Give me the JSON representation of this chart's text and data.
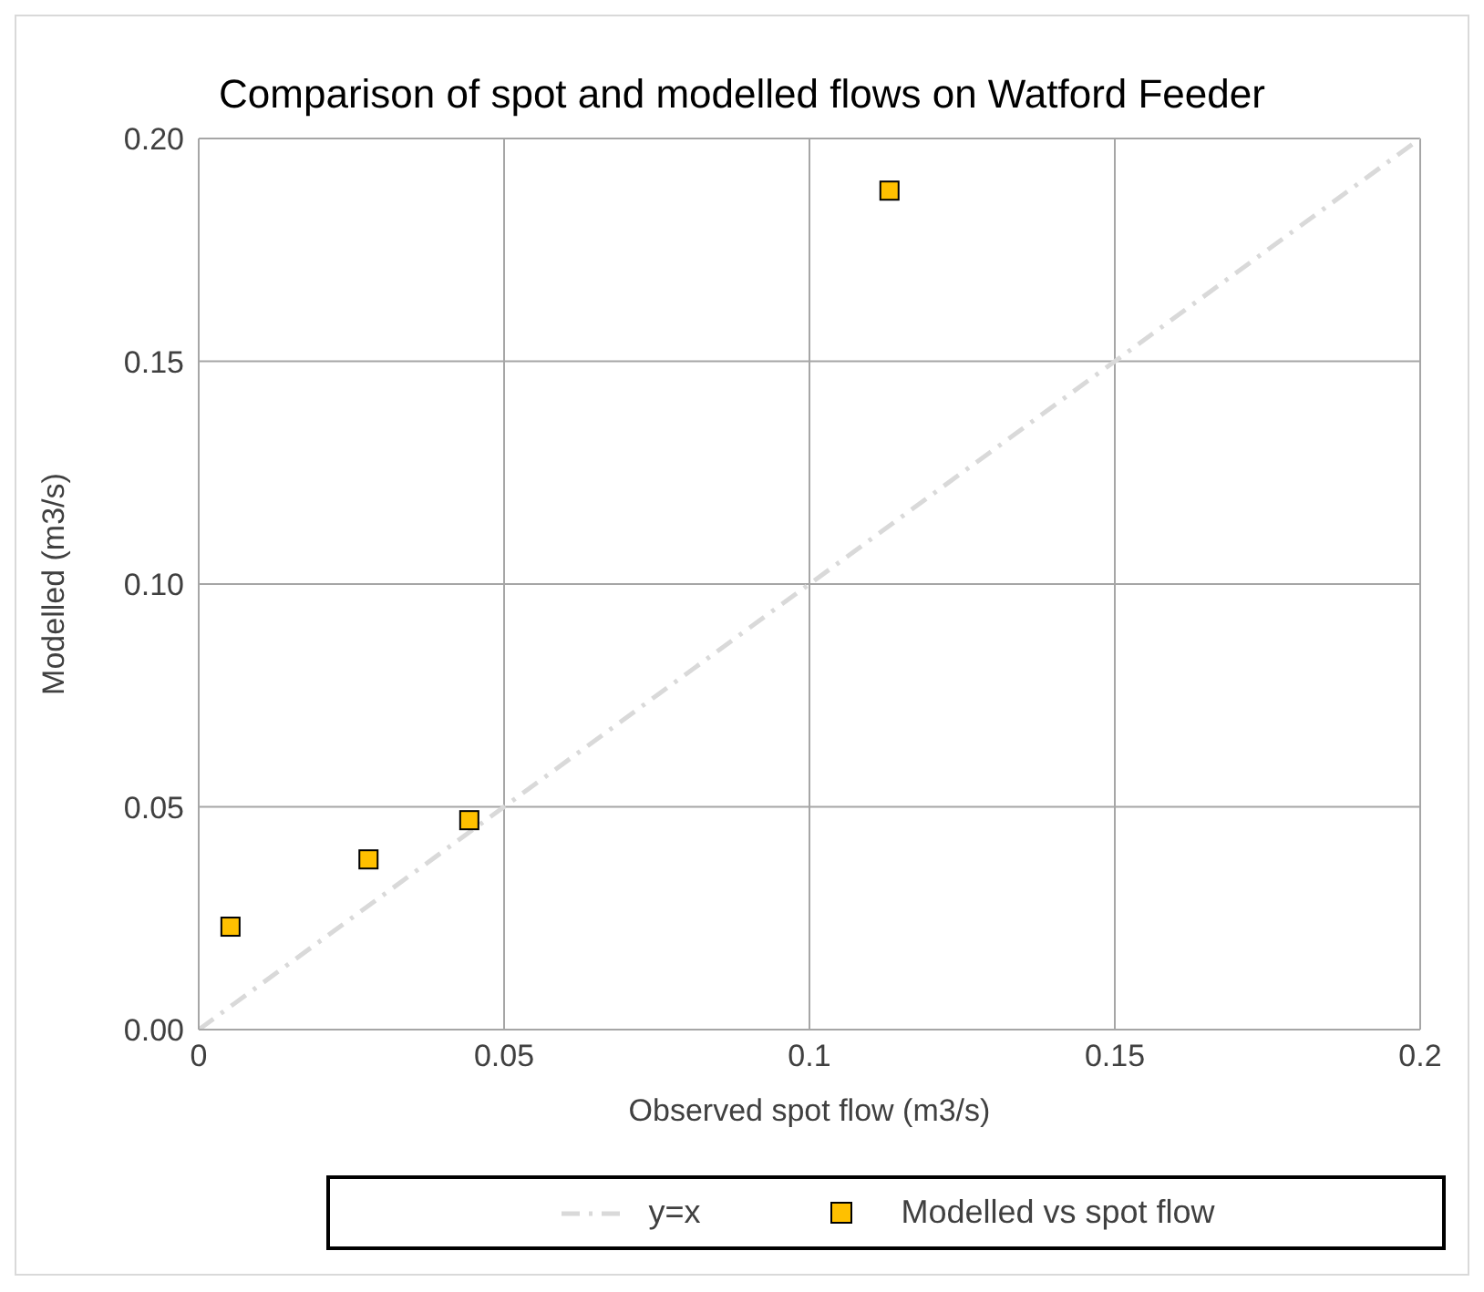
{
  "chart_data": {
    "type": "scatter",
    "title": "Comparison of spot and modelled flows on Watford Feeder",
    "xlabel": "Observed spot flow (m3/s)",
    "ylabel": "Modelled (m3/s)",
    "xlim": [
      0,
      0.2
    ],
    "ylim": [
      0,
      0.2
    ],
    "xticks": [
      0,
      0.05,
      0.1,
      0.15,
      0.2
    ],
    "yticks": [
      {
        "value": 0,
        "label": "0.00"
      },
      {
        "value": 0.05,
        "label": "0.05"
      },
      {
        "value": 0.1,
        "label": "0.10"
      },
      {
        "value": 0.15,
        "label": "0.15"
      },
      {
        "value": 0.2,
        "label": "0.20"
      }
    ],
    "grid": true,
    "legend": "bottom",
    "marker": "square",
    "series": [
      {
        "name": "y=x",
        "type": "line",
        "color": "#d9d9d9",
        "line_style": "dashed",
        "marker": "none",
        "x": [
          0,
          0.2
        ],
        "values": [
          0,
          0.2
        ]
      },
      {
        "name": "Modelled vs spot flow",
        "color": "#ffc000",
        "x": [
          0.0052,
          0.0278,
          0.0443,
          0.1131
        ],
        "values": [
          0.0231,
          0.0382,
          0.047,
          0.1883
        ]
      }
    ]
  }
}
